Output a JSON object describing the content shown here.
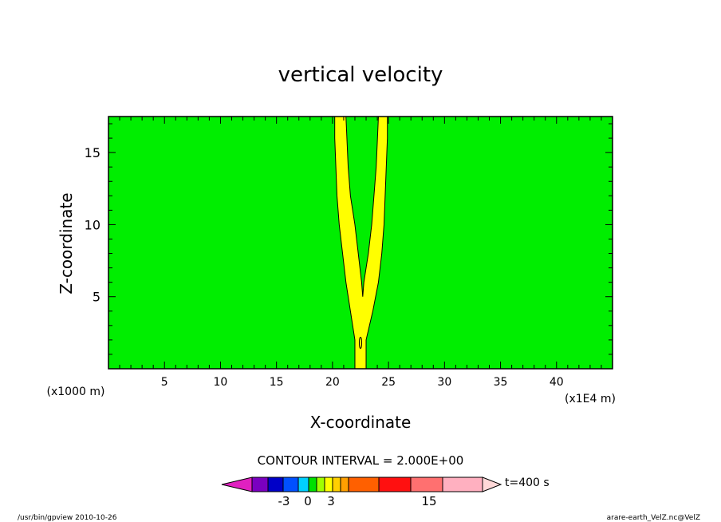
{
  "chart_data": {
    "type": "heatmap",
    "title": "vertical velocity",
    "xlabel": "X-coordinate",
    "ylabel": "Z-coordinate",
    "x_unit": "(x1000 m)",
    "z_unit": "(x1E4 m)",
    "xlim": [
      0,
      45
    ],
    "ylim": [
      0,
      17.5
    ],
    "x_ticks": [
      5,
      10,
      15,
      20,
      25,
      30,
      35,
      40
    ],
    "y_ticks": [
      5,
      10,
      15
    ],
    "background_level_color": "#00ee00",
    "contour_color": "#ffff00",
    "contour_interval_label": "CONTOUR INTERVAL = 2.000E+00",
    "time_label": "t=400 s",
    "plume_left_edge": [
      [
        22.0,
        0
      ],
      [
        22.0,
        2
      ],
      [
        21.6,
        4
      ],
      [
        21.2,
        6
      ],
      [
        20.9,
        8
      ],
      [
        20.6,
        10
      ],
      [
        20.4,
        12
      ],
      [
        20.3,
        14
      ],
      [
        20.2,
        16
      ],
      [
        20.2,
        17.5
      ]
    ],
    "plume_right_edge": [
      [
        23.0,
        0
      ],
      [
        23.0,
        2
      ],
      [
        23.6,
        4
      ],
      [
        24.1,
        6
      ],
      [
        24.4,
        8
      ],
      [
        24.6,
        10
      ],
      [
        24.7,
        12
      ],
      [
        24.8,
        14
      ],
      [
        24.9,
        16
      ],
      [
        24.9,
        17.5
      ]
    ],
    "plume_gap_top": [
      [
        21.2,
        17.5
      ],
      [
        21.4,
        14
      ],
      [
        21.6,
        12
      ],
      [
        22.0,
        10
      ],
      [
        22.3,
        8
      ],
      [
        22.6,
        6
      ],
      [
        22.7,
        5
      ],
      [
        22.8,
        6
      ],
      [
        23.2,
        8
      ],
      [
        23.5,
        10
      ],
      [
        23.7,
        12
      ],
      [
        23.9,
        14
      ],
      [
        24.1,
        17.5
      ]
    ],
    "colorbar": {
      "colors": [
        "#e020c0",
        "#7a00c0",
        "#0000c8",
        "#0050ff",
        "#00d0ff",
        "#00e000",
        "#a0ff00",
        "#ffff00",
        "#ffd000",
        "#ffa000",
        "#ff6000",
        "#ff1010",
        "#ff7070",
        "#ffb0c0",
        "#ffd8d8"
      ],
      "tick_labels": [
        "-3",
        "0",
        "3",
        "15"
      ]
    }
  },
  "footer": {
    "left": "/usr/bin/gpview   2010-10-26",
    "right": "arare-earth_VelZ.nc@VelZ"
  }
}
